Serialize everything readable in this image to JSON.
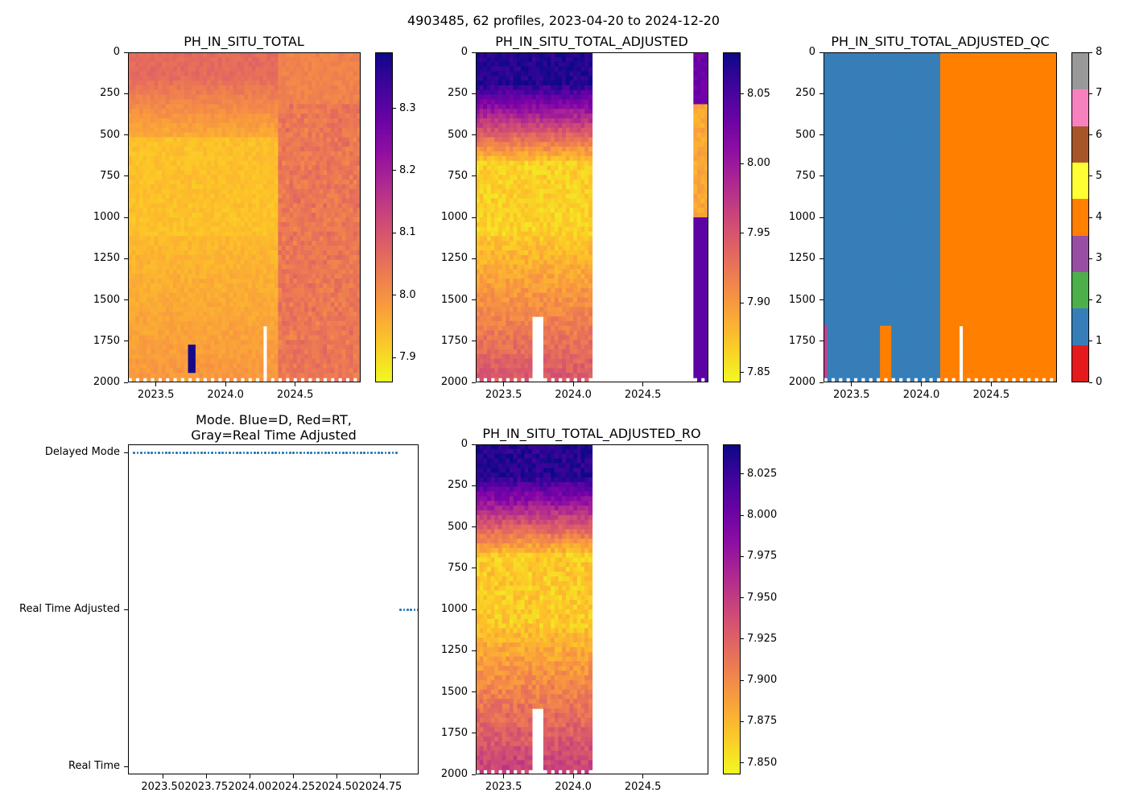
{
  "figure": {
    "suptitle": "4903485, 62 profiles, 2023-04-20 to 2024-12-20"
  },
  "chart_data": [
    {
      "id": "ph_total",
      "type": "heatmap",
      "title": "PH_IN_SITU_TOTAL",
      "ylim": [
        2000,
        0
      ],
      "yticks": [
        0,
        250,
        500,
        750,
        1000,
        1250,
        1500,
        1750,
        2000
      ],
      "ytick_labels": [
        "0",
        "250",
        "500",
        "750",
        "1000",
        "1250",
        "1500",
        "1750",
        "2000"
      ],
      "xlim": [
        2023.3,
        2024.97
      ],
      "xticks": [
        2023.5,
        2024.0,
        2024.5
      ],
      "xtick_labels": [
        "2023.5",
        "2024.0",
        "2024.5"
      ],
      "colormap": "plasma_r",
      "clim": [
        7.86,
        8.39
      ],
      "cbar_ticks": [
        7.9,
        8.0,
        8.1,
        8.2,
        8.3
      ],
      "cbar_tick_labels": [
        "7.9",
        "8.0",
        "8.1",
        "8.2",
        "8.3"
      ],
      "approx_values": {
        "profile_columns": 62,
        "surface_0_100m": 8.05,
        "depth_700_1000m_before_2024_2": 7.93,
        "depth_1500_2000m_before_2024_2": 7.98,
        "after_2024_3": 8.05,
        "outlier_spike_near_2023_75": 8.38
      }
    },
    {
      "id": "ph_adjusted",
      "type": "heatmap",
      "title": "PH_IN_SITU_TOTAL_ADJUSTED",
      "ylim": [
        2000,
        0
      ],
      "yticks": [
        0,
        250,
        500,
        750,
        1000,
        1250,
        1500,
        1750,
        2000
      ],
      "ytick_labels": [
        "0",
        "250",
        "500",
        "750",
        "1000",
        "1250",
        "1500",
        "1750",
        "2000"
      ],
      "xlim": [
        2023.3,
        2024.97
      ],
      "xticks": [
        2023.5,
        2024.0,
        2024.5
      ],
      "xtick_labels": [
        "2023.5",
        "2024.0",
        "2024.5"
      ],
      "colormap": "plasma_r",
      "clim": [
        7.843,
        8.08
      ],
      "cbar_ticks": [
        7.85,
        7.9,
        7.95,
        8.0,
        8.05
      ],
      "cbar_tick_labels": [
        "7.85",
        "7.90",
        "7.95",
        "8.00",
        "8.05"
      ],
      "data_gap_x": [
        2024.15,
        2024.87
      ],
      "gap_near_2023_7_depth_from": 1600
    },
    {
      "id": "ph_adjusted_qc",
      "type": "heatmap",
      "title": "PH_IN_SITU_TOTAL_ADJUSTED_QC",
      "ylim": [
        2000,
        0
      ],
      "yticks": [
        0,
        250,
        500,
        750,
        1000,
        1250,
        1500,
        1750,
        2000
      ],
      "ytick_labels": [
        "0",
        "250",
        "500",
        "750",
        "1000",
        "1250",
        "1500",
        "1750",
        "2000"
      ],
      "xlim": [
        2023.3,
        2024.97
      ],
      "xticks": [
        2023.5,
        2024.0,
        2024.5
      ],
      "xtick_labels": [
        "2023.5",
        "2024.0",
        "2024.5"
      ],
      "qc_change_x": 2024.15,
      "qc_before": 1,
      "qc_after": 4,
      "cbar_ticks": [
        0,
        1,
        2,
        3,
        4,
        5,
        6,
        7,
        8
      ],
      "cbar_tick_labels": [
        "0",
        "1",
        "2",
        "3",
        "4",
        "5",
        "6",
        "7",
        "8"
      ],
      "qc_colors": [
        "#e41a1c",
        "#377eb8",
        "#4daf4a",
        "#984ea3",
        "#ff7f00",
        "#ffff33",
        "#a65628",
        "#f781bf",
        "#999999"
      ]
    },
    {
      "id": "mode",
      "type": "scatter",
      "title_line1": "Mode. Blue=D, Red=RT,",
      "title_line2": "Gray=Real Time Adjusted",
      "xlim": [
        2023.3,
        2024.97
      ],
      "xticks": [
        2023.5,
        2023.75,
        2024.0,
        2024.25,
        2024.5,
        2024.75
      ],
      "xtick_labels": [
        "2023.50",
        "2023.75",
        "2024.00",
        "2024.25",
        "2024.50",
        "2024.75"
      ],
      "ytick_labels": [
        "Delayed Mode",
        "Real Time Adjusted",
        "Real Time"
      ],
      "series": [
        {
          "name": "Delayed Mode",
          "level": 2,
          "x_start": 2023.33,
          "x_end": 2024.84,
          "color": "#1f77b4"
        },
        {
          "name": "Real Time Adjusted",
          "level": 1,
          "x_start": 2024.86,
          "x_end": 2024.97,
          "color": "#1f77b4"
        }
      ]
    },
    {
      "id": "ph_adjusted_ro",
      "type": "heatmap",
      "title": "PH_IN_SITU_TOTAL_ADJUSTED_RO",
      "ylim": [
        2000,
        0
      ],
      "yticks": [
        0,
        250,
        500,
        750,
        1000,
        1250,
        1500,
        1750,
        2000
      ],
      "ytick_labels": [
        "0",
        "250",
        "500",
        "750",
        "1000",
        "1250",
        "1500",
        "1750",
        "2000"
      ],
      "xlim": [
        2023.3,
        2024.97
      ],
      "xticks": [
        2023.5,
        2024.0,
        2024.5
      ],
      "xtick_labels": [
        "2023.5",
        "2024.0",
        "2024.5"
      ],
      "colormap": "plasma_r",
      "clim": [
        7.843,
        8.043
      ],
      "cbar_ticks": [
        7.85,
        7.875,
        7.9,
        7.925,
        7.95,
        7.975,
        8.0,
        8.025
      ],
      "cbar_tick_labels": [
        "7.850",
        "7.875",
        "7.900",
        "7.925",
        "7.950",
        "7.975",
        "8.000",
        "8.025"
      ],
      "data_gap_x": [
        2024.15,
        2024.97
      ]
    }
  ]
}
